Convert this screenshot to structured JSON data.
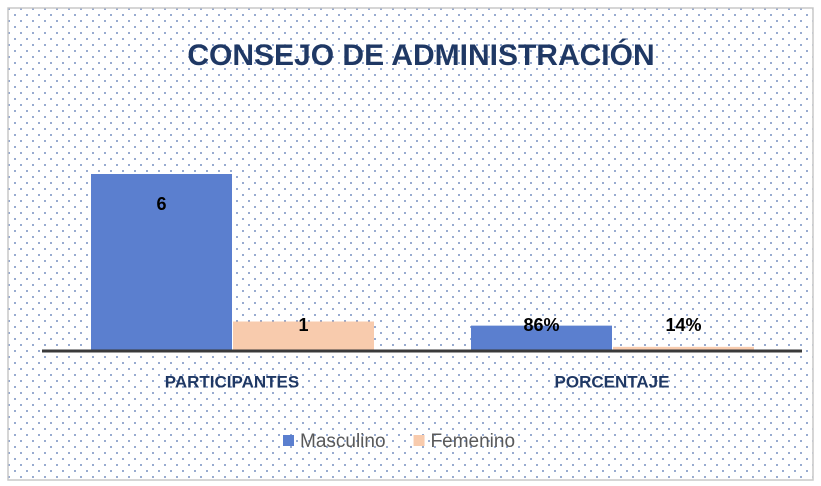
{
  "chart_data": {
    "type": "bar",
    "title": "CONSEJO DE ADMINISTRACIÓN",
    "categories": [
      "PARTICIPANTES",
      "PORCENTAJE"
    ],
    "series": [
      {
        "name": "Masculino",
        "color": "#5b7fcf",
        "values": [
          6,
          0.86
        ],
        "value_labels": [
          "6",
          "86%"
        ]
      },
      {
        "name": "Femenino",
        "color": "#f8cbad",
        "values": [
          1,
          0.14
        ],
        "value_labels": [
          "1",
          "14%"
        ]
      }
    ],
    "legend": "bottom"
  }
}
